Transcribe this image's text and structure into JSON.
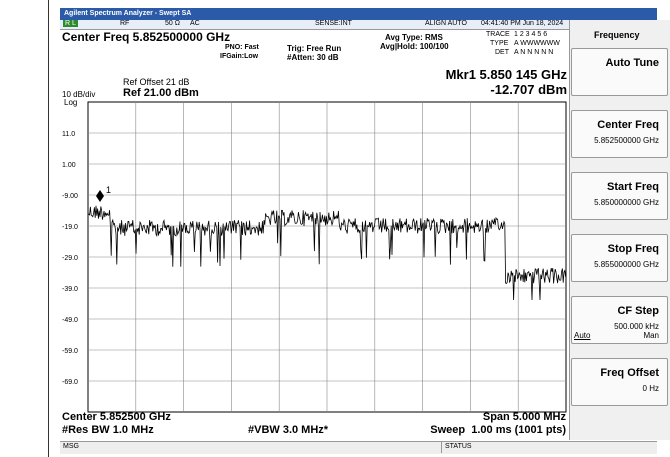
{
  "title_bar": "Agilent Spectrum Analyzer - Swept SA",
  "status_row": {
    "rl": "R L",
    "rf": "RF",
    "impedance": "50 Ω",
    "coupling": "AC",
    "sense": "SENSE:INT",
    "align": "ALIGN AUTO",
    "datetime": "04:41:40 PM Jun 18, 2024"
  },
  "trace_info": {
    "trace_label": "TRACE",
    "trace": "1 2 3 4 5 6",
    "type_label": "TYPE",
    "type": "A WWWWWW",
    "det_label": "DET",
    "det": "A N N N N N"
  },
  "header": {
    "center_freq": "Center Freq 5.852500000 GHz",
    "pno": "PNO: Fast",
    "ifgain": "IFGain:Low",
    "trig": "Trig: Free Run",
    "atten": "#Atten: 30 dB",
    "avg_type": "Avg Type: RMS",
    "avg_hold": "Avg|Hold: 100/100"
  },
  "marker": {
    "readout_freq": "Mkr1 5.850 145 GHz",
    "readout_amp": "-12.707 dBm",
    "label": "1"
  },
  "scale": {
    "ref_offset": "Ref Offset 21 dB",
    "per_div": "10 dB/div",
    "log": "Log",
    "ref_level": "Ref 21.00 dBm",
    "y_labels": [
      "11.0",
      "1.00",
      "-9.00",
      "-19.0",
      "-29.0",
      "-39.0",
      "-49.0",
      "-59.0",
      "-69.0"
    ]
  },
  "footer": {
    "center": "Center 5.852500 GHz",
    "res_bw": "#Res BW 1.0 MHz",
    "vbw": "#VBW 3.0 MHz*",
    "span": "Span 5.000 MHz",
    "sweep": "Sweep  1.00 ms (1001 pts)"
  },
  "softkeys": {
    "menu": "Frequency",
    "keys": [
      {
        "title": "Auto Tune"
      },
      {
        "title": "Center Freq",
        "value": "5.852500000 GHz"
      },
      {
        "title": "Start Freq",
        "value": "5.850000000 GHz"
      },
      {
        "title": "Stop Freq",
        "value": "5.855000000 GHz"
      },
      {
        "title": "CF Step",
        "value": "500.000 kHz",
        "options": [
          "Auto",
          "Man"
        ]
      },
      {
        "title": "Freq Offset",
        "value": "0 Hz"
      }
    ]
  },
  "message_bar": {
    "msg": "MSG",
    "status": "STATUS"
  }
}
